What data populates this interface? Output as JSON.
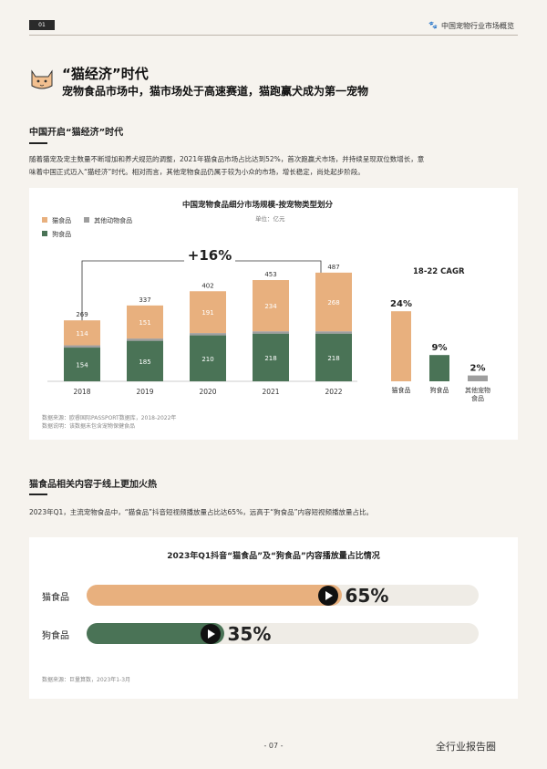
{
  "header": {
    "badge": "01",
    "title": "中国宠物行业市场概览"
  },
  "hero": {
    "title": "“猫经济”时代",
    "subtitle": "宠物食品市场中，猫市场处于高速赛道，猫跑赢犬成为第一宠物"
  },
  "section1": {
    "title": "中国开启“猫经济”时代",
    "paragraph_line1": "随着猫宠及宠主数量不断增加和养犬规范的调整，2021年猫食品市场占比达到52%，首次跑赢犬市场，并持续呈现双位数增长，意",
    "paragraph_line2": "味着中国正式迈入“猫经济”时代。相对而言，其他宠物食品仍属于较为小众的市场，增长稳定，尚处起步阶段。"
  },
  "chart1": {
    "title": "中国宠物食品细分市场规模-按宠物类型划分",
    "unit": "单位：亿元",
    "legend": [
      "猫食品",
      "其他动物食品",
      "狗食品"
    ],
    "growth_label": "+16%",
    "source_line1": "数据来源：欧睿国际PASSPORT数据库，2018-2022年",
    "source_line2": "数据说明：该数据未包含宠物保健食品"
  },
  "chart_data": [
    {
      "type": "bar",
      "stacked": true,
      "categories": [
        "2018",
        "2019",
        "2020",
        "2021",
        "2022"
      ],
      "series": [
        {
          "name": "狗食品",
          "values": [
            154,
            185,
            210,
            218,
            218
          ],
          "color": "#4a7356"
        },
        {
          "name": "其他动物食品",
          "values": [
            1,
            1,
            1,
            1,
            1
          ],
          "color": "#9e9e9e"
        },
        {
          "name": "猫食品",
          "values": [
            114,
            151,
            191,
            234,
            268
          ],
          "color": "#e8b07e"
        }
      ],
      "totals": [
        269,
        337,
        402,
        453,
        487
      ],
      "title": "中国宠物食品细分市场规模-按宠物类型划分",
      "ylabel": "单位：亿元",
      "ylim": [
        0,
        500
      ]
    },
    {
      "type": "bar",
      "title": "18-22 CAGR",
      "categories": [
        "猫食品",
        "狗食品",
        "其他宠物食品"
      ],
      "values": [
        24,
        9,
        2
      ],
      "labels": [
        "24%",
        "9%",
        "2%"
      ],
      "colors": [
        "#e8b07e",
        "#4a7356",
        "#9e9e9e"
      ]
    },
    {
      "type": "bar",
      "orientation": "horizontal",
      "title": "2023年Q1抖音“猫食品”及“狗食品”内容播放量占比情况",
      "categories": [
        "猫食品",
        "狗食品"
      ],
      "values": [
        65,
        35
      ],
      "labels": [
        "65%",
        "35%"
      ],
      "colors": [
        "#e8b07e",
        "#4a7356"
      ],
      "xlim": [
        0,
        100
      ]
    }
  ],
  "section2": {
    "title": "猫食品相关内容于线上更加火热",
    "paragraph": "2023年Q1，主流宠物食品中，“猫食品”抖音短视频播放量占比达65%，远高于“狗食品”内容短视频播放量占比。"
  },
  "chart3": {
    "source": "数据来源：巨量算数，2023年1-3月"
  },
  "footer": {
    "page": "- 07 -",
    "watermark": "全行业报告圈"
  }
}
